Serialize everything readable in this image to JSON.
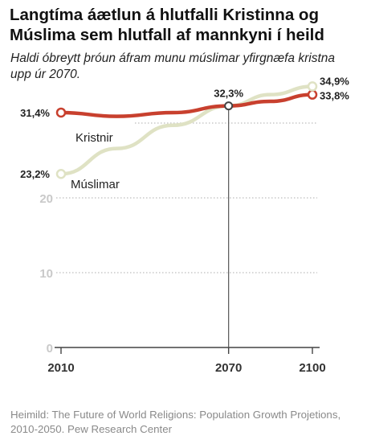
{
  "chart_data": {
    "type": "line",
    "title": "Langtíma áætlun á hlutfalli Kristinna og Múslima sem hlutfall af mannkyni í heild",
    "subtitle": "Haldi óbreytt þróun áfram munu múslimar yfirgnæfa kristna upp úr 2070.",
    "source": "Heimild: The Future of World Religions: Population Growth Projetions, 2010-2050. Pew Research Center",
    "x_ticks": [
      "2010",
      "2070",
      "2100"
    ],
    "y_ticks": [
      "0",
      "10",
      "20"
    ],
    "ylim": [
      0,
      36
    ],
    "xlim": [
      2010,
      2100
    ],
    "series": [
      {
        "name": "Kristnir",
        "color": "#c8402e",
        "points": [
          [
            2010,
            31.4
          ],
          [
            2030,
            30.9
          ],
          [
            2050,
            31.4
          ],
          [
            2070,
            32.3
          ],
          [
            2085,
            32.9
          ],
          [
            2100,
            33.8
          ]
        ],
        "start_label": "31,4%",
        "end_label": "33,8%"
      },
      {
        "name": "Múslimar",
        "color": "#dfe2c4",
        "points": [
          [
            2010,
            23.2
          ],
          [
            2030,
            26.6
          ],
          [
            2050,
            29.7
          ],
          [
            2070,
            32.3
          ],
          [
            2085,
            33.8
          ],
          [
            2100,
            34.9
          ]
        ],
        "start_label": "23,2%",
        "end_label": "34,9%"
      }
    ],
    "crossover": {
      "x": 2070,
      "y": 32.3,
      "label": "32,3%"
    },
    "grid": true
  }
}
